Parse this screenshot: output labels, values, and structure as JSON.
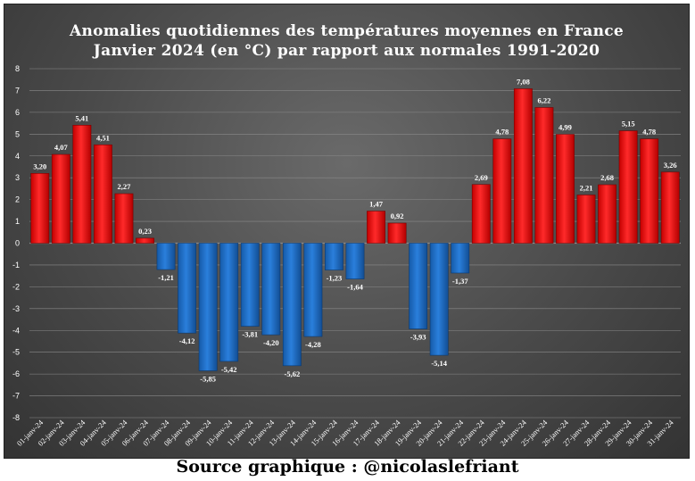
{
  "source": "Source graphique : @nicolaslefriant",
  "colors": {
    "positive": "#ff1a1a",
    "negative": "#1f6fd0",
    "grid": "#8a8a8a"
  },
  "chart_data": {
    "type": "bar",
    "title": "Anomalies quotidiennes des températures moyennes en France",
    "subtitle": "Janvier 2024 (en °C) par rapport aux normales 1991-2020",
    "xlabel": "",
    "ylabel": "",
    "ylim": [
      -8,
      8
    ],
    "yticks": [
      8,
      7,
      6,
      5,
      4,
      3,
      2,
      1,
      0,
      -1,
      -2,
      -3,
      -4,
      -5,
      -6,
      -7,
      -8
    ],
    "grid": true,
    "legend": "none",
    "categories": [
      "01-janv-24",
      "02-janv-24",
      "03-janv-24",
      "04-janv-24",
      "05-janv-24",
      "06-janv-24",
      "07-janv-24",
      "08-janv-24",
      "09-janv-24",
      "10-janv-24",
      "11-janv-24",
      "12-janv-24",
      "13-janv-24",
      "14-janv-24",
      "15-janv-24",
      "16-janv-24",
      "17-janv-24",
      "18-janv-24",
      "19-janv-24",
      "20-janv-24",
      "21-janv-24",
      "22-janv-24",
      "23-janv-24",
      "24-janv-24",
      "25-janv-24",
      "26-janv-24",
      "27-janv-24",
      "28-janv-24",
      "29-janv-24",
      "30-janv-24",
      "31-janv-24"
    ],
    "values": [
      3.2,
      4.07,
      5.41,
      4.51,
      2.27,
      0.23,
      -1.21,
      -4.12,
      -5.85,
      -5.42,
      -3.81,
      -4.2,
      -5.62,
      -4.28,
      -1.23,
      -1.64,
      1.47,
      0.92,
      -3.93,
      -5.14,
      -1.37,
      2.69,
      4.78,
      7.08,
      6.22,
      4.99,
      2.21,
      2.68,
      5.15,
      4.78,
      3.26
    ],
    "data_labels": [
      "3,20",
      "4,07",
      "5,41",
      "4,51",
      "2,27",
      "0,23",
      "-1,21",
      "-4,12",
      "-5,85",
      "-5,42",
      "-3,81",
      "-4,20",
      "-5,62",
      "-4,28",
      "-1,23",
      "-1,64",
      "1,47",
      "0,92",
      "-3,93",
      "-5,14",
      "-1,37",
      "2,69",
      "4,78",
      "7,08",
      "6,22",
      "4,99",
      "2,21",
      "2,68",
      "5,15",
      "4,78",
      "3,26"
    ]
  }
}
